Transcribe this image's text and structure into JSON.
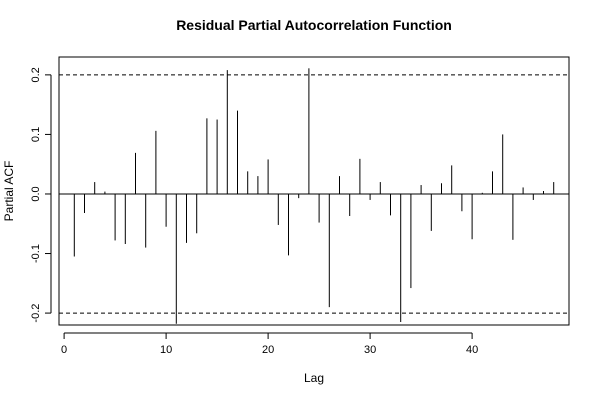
{
  "chart_data": {
    "type": "bar",
    "title": "Residual Partial Autocorrelation Function",
    "xlabel": "Lag",
    "ylabel": "Partial ACF",
    "xlim": [
      -0.5,
      49.5
    ],
    "ylim": [
      -0.22,
      0.23
    ],
    "x_ticks": [
      0,
      10,
      20,
      30,
      40
    ],
    "y_ticks": [
      -0.2,
      -0.1,
      0.0,
      0.1,
      0.2
    ],
    "y_tick_labels": [
      "-0.2",
      "-0.1",
      "0.0",
      "0.1",
      "0.2"
    ],
    "confidence_bounds": [
      0.2,
      -0.2
    ],
    "lags": [
      1,
      2,
      3,
      4,
      5,
      6,
      7,
      8,
      9,
      10,
      11,
      12,
      13,
      14,
      15,
      16,
      17,
      18,
      19,
      20,
      21,
      22,
      23,
      24,
      25,
      26,
      27,
      28,
      29,
      30,
      31,
      32,
      33,
      34,
      35,
      36,
      37,
      38,
      39,
      40,
      41,
      42,
      43,
      44,
      45,
      46,
      47,
      48
    ],
    "values": [
      -0.105,
      -0.032,
      0.02,
      0.004,
      -0.078,
      -0.084,
      0.069,
      -0.09,
      0.106,
      -0.055,
      -0.218,
      -0.082,
      -0.066,
      0.127,
      0.125,
      0.208,
      0.14,
      0.038,
      0.03,
      0.058,
      -0.052,
      -0.103,
      -0.007,
      0.211,
      -0.048,
      -0.19,
      0.03,
      -0.037,
      0.059,
      -0.01,
      0.02,
      -0.036,
      -0.215,
      -0.158,
      0.015,
      -0.062,
      0.018,
      0.048,
      -0.029,
      -0.076,
      0.002,
      0.038,
      0.1,
      -0.077,
      0.011,
      -0.01,
      0.005,
      0.02
    ]
  }
}
